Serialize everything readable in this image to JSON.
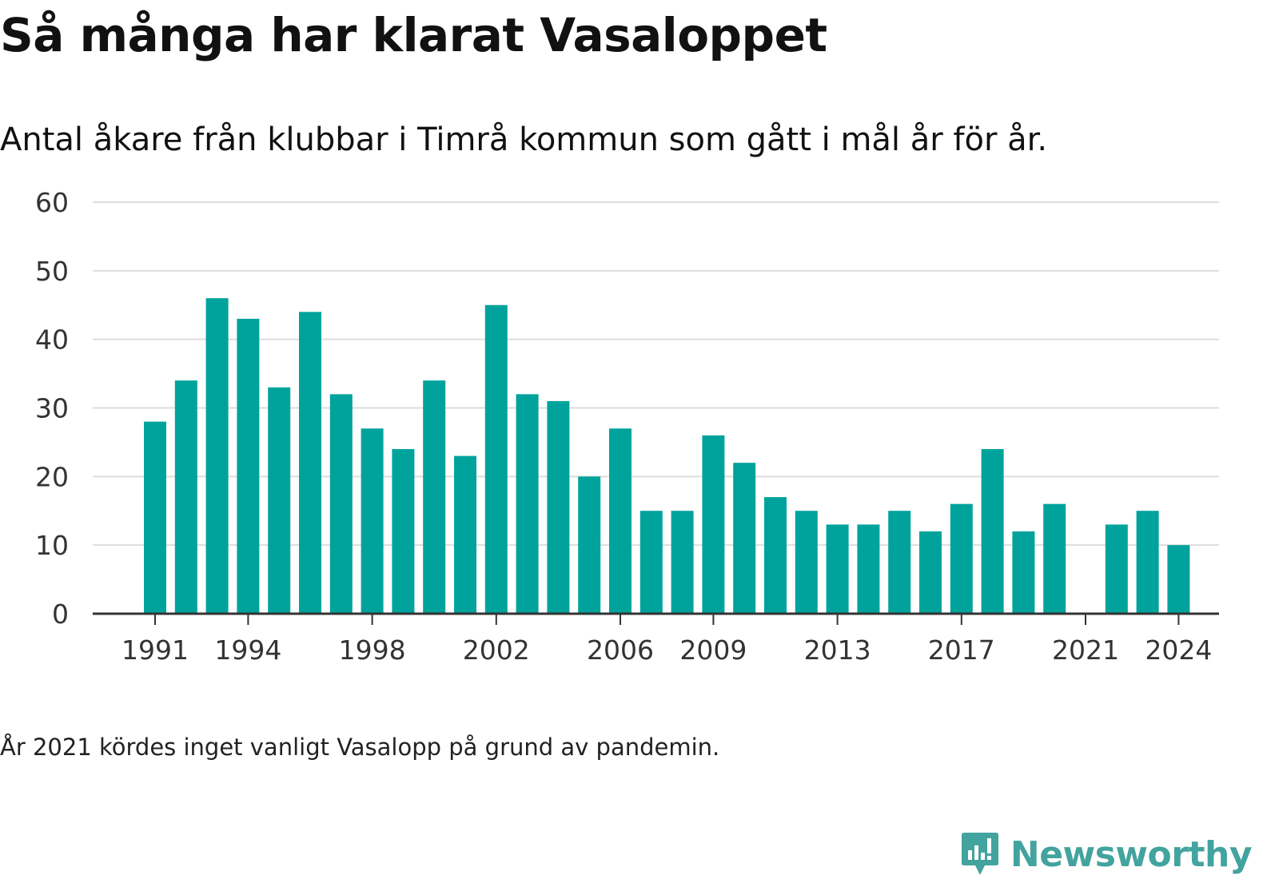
{
  "title": "Så många har klarat Vasaloppet",
  "subtitle": "Antal åkare från klubbar i Timrå kommun som gått i mål år för år.",
  "note": "År 2021 kördes inget vanligt Vasalopp på grund av pandemin.",
  "brand": {
    "name": "Newsworthy",
    "icon": "newsworthy-logo-icon",
    "color": "#43a39e"
  },
  "chart_data": {
    "type": "bar",
    "categories": [
      "1991",
      "1992",
      "1993",
      "1994",
      "1995",
      "1996",
      "1997",
      "1998",
      "1999",
      "2000",
      "2001",
      "2002",
      "2003",
      "2004",
      "2005",
      "2006",
      "2007",
      "2008",
      "2009",
      "2010",
      "2011",
      "2012",
      "2013",
      "2014",
      "2015",
      "2016",
      "2017",
      "2018",
      "2019",
      "2020",
      "2021",
      "2022",
      "2023",
      "2024"
    ],
    "values": [
      28,
      34,
      46,
      43,
      33,
      44,
      32,
      27,
      24,
      34,
      23,
      45,
      32,
      31,
      20,
      27,
      15,
      15,
      26,
      22,
      17,
      15,
      13,
      13,
      15,
      12,
      16,
      24,
      12,
      16,
      null,
      13,
      15,
      10
    ],
    "x_tick_labels": [
      "1991",
      "1994",
      "1998",
      "2002",
      "2006",
      "2009",
      "2013",
      "2017",
      "2021",
      "2024"
    ],
    "y_ticks": [
      0,
      10,
      20,
      30,
      40,
      50,
      60
    ],
    "ylim": [
      0,
      60
    ],
    "xlabel": "",
    "ylabel": "",
    "grid": true,
    "bar_color": "#00a39b"
  }
}
